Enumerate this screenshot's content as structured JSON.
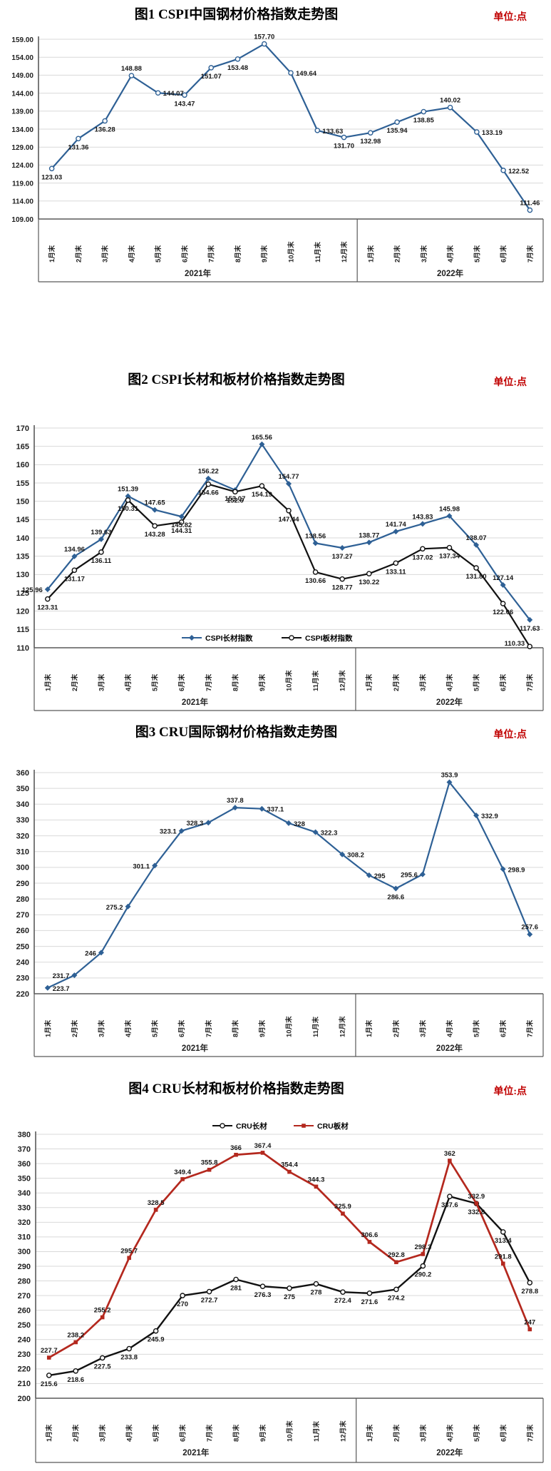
{
  "page": {
    "background": "#ffffff"
  },
  "chart_data": [
    {
      "type": "line",
      "title": "图1 CSPI中国钢材价格指数走势图",
      "unit_label": "单位:点",
      "ylim": [
        109,
        159
      ],
      "ystep": 5,
      "ytick_decimals": 2,
      "grid": true,
      "legend_position": null,
      "x_groups": [
        {
          "label": "2021年",
          "categories": [
            "1月末",
            "2月末",
            "3月末",
            "4月末",
            "5月末",
            "6月末",
            "7月末",
            "8月末",
            "9月末",
            "10月末",
            "11月末",
            "12月末"
          ]
        },
        {
          "label": "2022年",
          "categories": [
            "1月末",
            "2月末",
            "3月末",
            "4月末",
            "5月末",
            "6月末",
            "7月末"
          ]
        }
      ],
      "series": [
        {
          "name": "CSPI中国钢材价格指数",
          "color": "#2e6095",
          "marker": "circle-open",
          "labels": [
            "123.03",
            "131.36",
            "136.28",
            "148.88",
            "144.07",
            "143.47",
            "151.07",
            "153.48",
            "157.70",
            "149.64",
            "133.63",
            "131.70",
            "132.98",
            "135.94",
            "138.85",
            "140.02",
            "133.19",
            "122.52",
            "111.46"
          ]
        }
      ]
    },
    {
      "type": "line",
      "title": "图2 CSPI长材和板材价格指数走势图",
      "unit_label": "单位:点",
      "ylim": [
        110,
        170
      ],
      "ystep": 5,
      "ytick_decimals": 0,
      "grid": true,
      "legend_position": "bottom-inside",
      "x_groups": [
        {
          "label": "2021年",
          "categories": [
            "1月末",
            "2月末",
            "3月末",
            "4月末",
            "5月末",
            "6月末",
            "7月末",
            "8月末",
            "9月末",
            "10月末",
            "11月末",
            "12月末"
          ]
        },
        {
          "label": "2022年",
          "categories": [
            "1月末",
            "2月末",
            "3月末",
            "4月末",
            "5月末",
            "6月末",
            "7月末"
          ]
        }
      ],
      "series": [
        {
          "name": "CSPI长材指数",
          "color": "#2e6095",
          "marker": "diamond",
          "labels": [
            "125.96",
            "134.96",
            "139.63",
            "151.39",
            "147.65",
            "145.82",
            "156.22",
            "153.07",
            "165.56",
            "154.77",
            "138.56",
            "137.27",
            "138.77",
            "141.74",
            "143.83",
            "145.98",
            "138.07",
            "127.14",
            "117.63"
          ]
        },
        {
          "name": "CSPI板材指数",
          "color": "#111111",
          "marker": "circle-open",
          "labels": [
            "123.31",
            "131.17",
            "136.11",
            "150.31",
            "143.28",
            "144.31",
            "154.66",
            "152.6",
            "154.19",
            "147.44",
            "130.66",
            "128.77",
            "130.22",
            "133.11",
            "137.02",
            "137.34",
            "131.80",
            "122.06",
            "110.33"
          ]
        }
      ]
    },
    {
      "type": "line",
      "title": "图3 CRU国际钢材价格指数走势图",
      "unit_label": "单位:点",
      "ylim": [
        220,
        360
      ],
      "ystep": 10,
      "ytick_decimals": 0,
      "grid": true,
      "legend_position": null,
      "x_groups": [
        {
          "label": "2021年",
          "categories": [
            "1月末",
            "2月末",
            "3月末",
            "4月末",
            "5月末",
            "6月末",
            "7月末",
            "8月末",
            "9月末",
            "10月末",
            "11月末",
            "12月末"
          ]
        },
        {
          "label": "2022年",
          "categories": [
            "1月末",
            "2月末",
            "3月末",
            "4月末",
            "5月末",
            "6月末",
            "7月末"
          ]
        }
      ],
      "series": [
        {
          "name": "CRU国际钢材价格指数",
          "color": "#2e6095",
          "marker": "diamond",
          "labels": [
            "223.7",
            "231.7",
            "246",
            "275.2",
            "301.1",
            "323.1",
            "328.3",
            "337.8",
            "337.1",
            "328",
            "322.3",
            "308.2",
            "295",
            "286.6",
            "295.6",
            "353.9",
            "332.9",
            "298.9",
            "257.6"
          ]
        }
      ]
    },
    {
      "type": "line",
      "title": "图4 CRU长材和板材价格指数走势图",
      "unit_label": "单位:点",
      "ylim": [
        200,
        380
      ],
      "ystep": 10,
      "ytick_decimals": 0,
      "grid": true,
      "legend_position": "top-inside",
      "x_groups": [
        {
          "label": "2021年",
          "categories": [
            "1月末",
            "2月末",
            "3月末",
            "4月末",
            "5月末",
            "6月末",
            "7月末",
            "8月末",
            "9月末",
            "10月末",
            "11月末",
            "12月末"
          ]
        },
        {
          "label": "2022年",
          "categories": [
            "1月末",
            "2月末",
            "3月末",
            "4月末",
            "5月末",
            "6月末",
            "7月末"
          ]
        }
      ],
      "series": [
        {
          "name": "CRU长材",
          "color": "#111111",
          "marker": "circle-open",
          "labels": [
            "215.6",
            "218.6",
            "227.5",
            "233.8",
            "245.9",
            "270",
            "272.7",
            "281",
            "276.3",
            "275",
            "278",
            "272.4",
            "271.6",
            "274.2",
            "290.2",
            "337.6",
            "332.8",
            "313.4",
            "278.8"
          ]
        },
        {
          "name": "CRU板材",
          "color": "#b4281e",
          "marker": "square",
          "labels": [
            "227.7",
            "238.2",
            "255.2",
            "295.7",
            "328.5",
            "349.4",
            "355.8",
            "366",
            "367.4",
            "354.4",
            "344.3",
            "325.9",
            "306.6",
            "292.8",
            "298.3",
            "362",
            "332.9",
            "291.8",
            "247"
          ]
        }
      ]
    }
  ]
}
